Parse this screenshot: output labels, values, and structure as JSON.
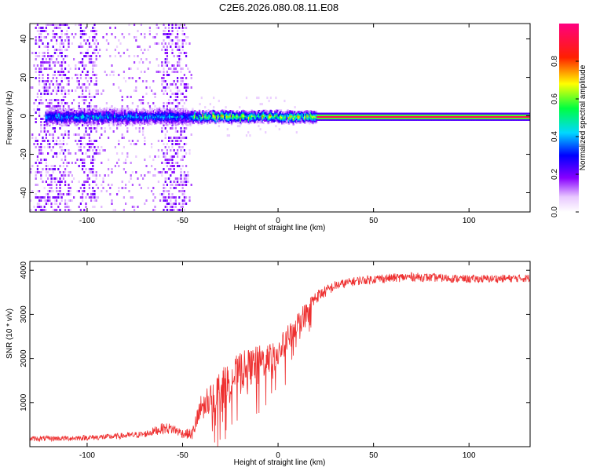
{
  "title": "C2E6.2026.080.08.11.E08",
  "colors": {
    "signal_line": "#ee3030",
    "snr_line": "#ee3030",
    "background": "#ffffff"
  },
  "chart_data": [
    {
      "name": "spectrogram",
      "type": "heatmap",
      "xlabel": "Height of straight line (km)",
      "ylabel": "Frequency (Hz)",
      "xlim": [
        -130,
        132
      ],
      "ylim": [
        -50,
        48
      ],
      "x_ticks": [
        "-100",
        "-50",
        "0",
        "50",
        "100"
      ],
      "x_tick_values": [
        -100,
        -50,
        0,
        50,
        100
      ],
      "y_ticks": [
        "-40",
        "-20",
        "0",
        "20",
        "40"
      ],
      "y_tick_values": [
        -40,
        -20,
        0,
        20,
        40
      ],
      "colorbar": {
        "label": "Normalized spectral amplitude",
        "range": [
          0,
          1
        ],
        "ticks": [
          "0.0",
          "0.2",
          "0.4",
          "0.6",
          "0.8"
        ],
        "tick_values": [
          0.0,
          0.2,
          0.4,
          0.6,
          0.8
        ],
        "colormap": "rainbow (white-violet-blue-cyan-green-yellow-red-magenta)"
      },
      "features": {
        "noise_region_x": [
          -130,
          -45
        ],
        "noise_columns_x": [
          [
            -128,
            -110
          ],
          [
            -105,
            -95
          ],
          [
            -62,
            -48
          ]
        ],
        "signal_track_start_x": -45,
        "signal_track_frequency": 0,
        "strong_carrier_start_x": 20
      }
    },
    {
      "name": "snr",
      "type": "line",
      "xlabel": "Height of straight line (km)",
      "ylabel": "SNR (10 * v/v)",
      "xlim": [
        -130,
        132
      ],
      "ylim": [
        0,
        4200
      ],
      "x_ticks": [
        "-100",
        "-50",
        "0",
        "50",
        "100"
      ],
      "x_tick_values": [
        -100,
        -50,
        0,
        50,
        100
      ],
      "y_ticks": [
        "1000",
        "2000",
        "3000",
        "4000"
      ],
      "y_tick_values": [
        1000,
        2000,
        3000,
        4000
      ],
      "envelope": {
        "x": [
          -130,
          -110,
          -90,
          -70,
          -60,
          -55,
          -50,
          -45,
          -40,
          -30,
          -20,
          -10,
          0,
          10,
          20,
          30,
          40,
          50,
          70,
          100,
          132
        ],
        "y_mean": [
          180,
          190,
          220,
          280,
          420,
          400,
          300,
          280,
          900,
          1300,
          1700,
          1900,
          2100,
          2800,
          3400,
          3650,
          3750,
          3800,
          3850,
          3800,
          3820
        ],
        "y_spread": [
          120,
          120,
          130,
          150,
          250,
          250,
          200,
          250,
          700,
          900,
          900,
          800,
          700,
          500,
          300,
          220,
          200,
          200,
          200,
          180,
          180
        ]
      }
    }
  ]
}
